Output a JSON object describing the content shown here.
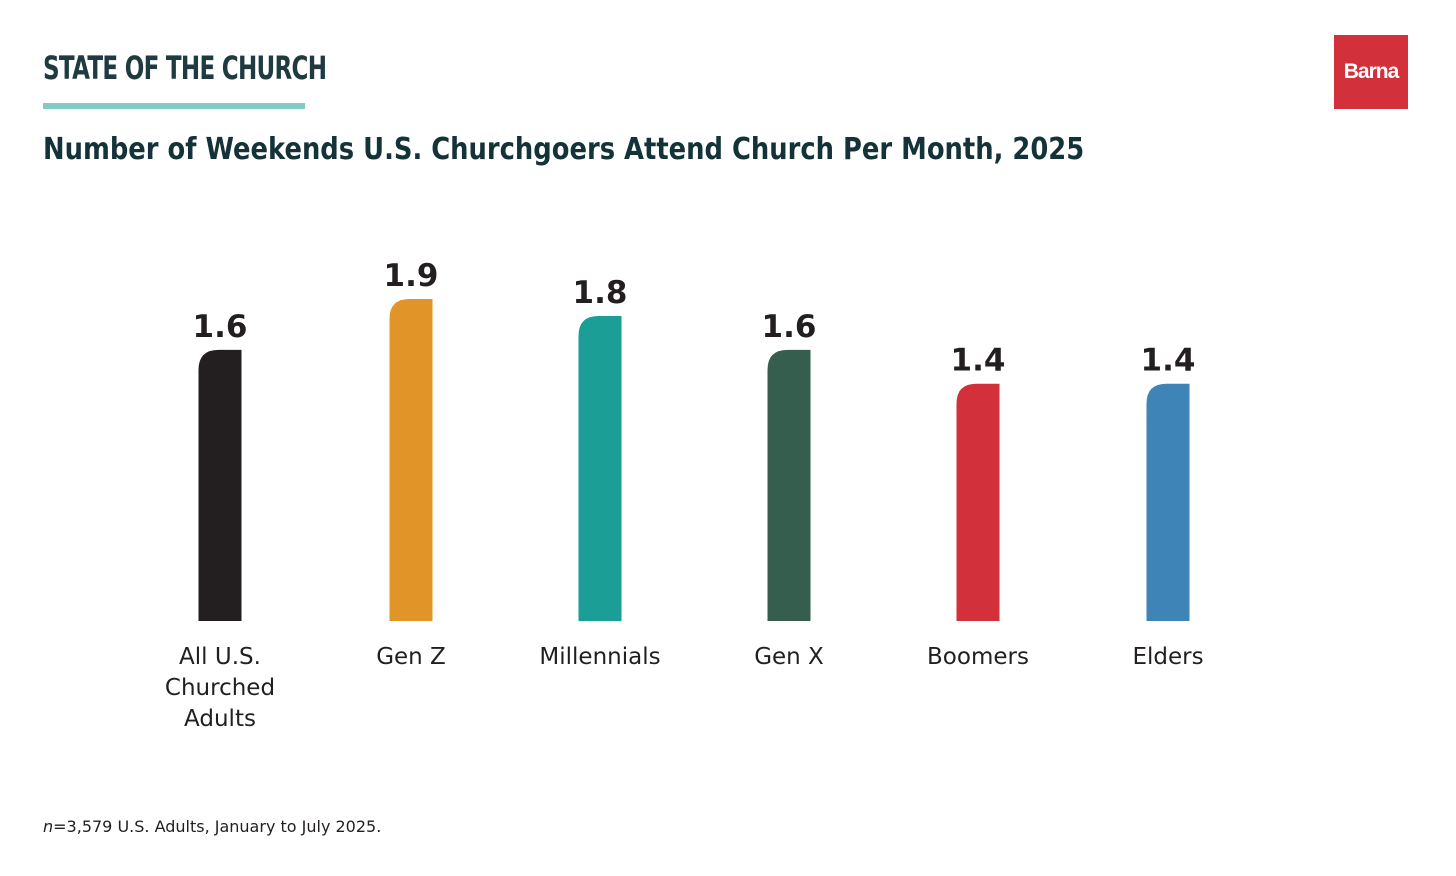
{
  "header": {
    "series_title": "STATE OF THE CHURCH",
    "logo_text": "Barna"
  },
  "colors": {
    "accent_rule": "#86cbc1",
    "brand_red": "#d2303a",
    "title_text": "#143339"
  },
  "chart_data": {
    "type": "bar",
    "title": "Number of Weekends U.S. Churchgoers Attend Church Per Month, 2025",
    "categories": [
      [
        "All U.S.",
        "Churched",
        "Adults"
      ],
      [
        "Gen Z"
      ],
      [
        "Millennials"
      ],
      [
        "Gen X"
      ],
      [
        "Boomers"
      ],
      [
        "Elders"
      ]
    ],
    "values": [
      1.6,
      1.9,
      1.8,
      1.6,
      1.4,
      1.4
    ],
    "value_labels": [
      "1.6",
      "1.9",
      "1.8",
      "1.6",
      "1.4",
      "1.4"
    ],
    "bar_colors": [
      "#231f20",
      "#e19427",
      "#1a9e95",
      "#365e4f",
      "#d2303a",
      "#3f84b6"
    ],
    "ylim": [
      0,
      1.9
    ],
    "grid": false,
    "legend": "none"
  },
  "footnote": {
    "n_symbol": "n",
    "text": "=3,579 U.S. Adults, January to July 2025."
  }
}
